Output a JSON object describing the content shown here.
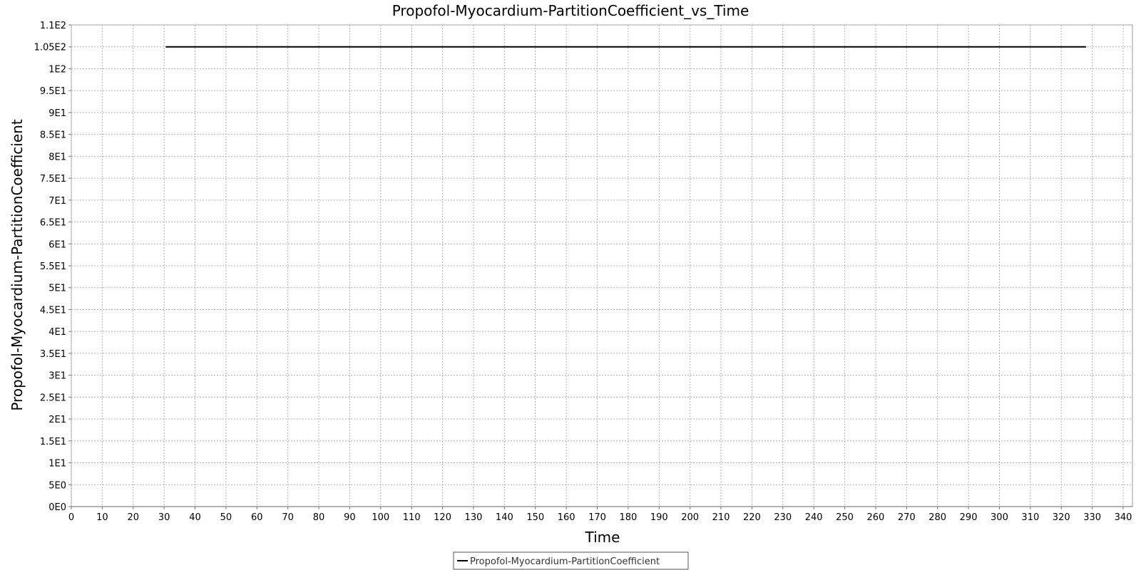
{
  "chart_data": {
    "type": "line",
    "title": "Propofol-Myocardium-PartitionCoefficient_vs_Time",
    "xlabel": "Time",
    "ylabel": "Propofol-Myocardium-PartitionCoefficient",
    "xlim": [
      0,
      343
    ],
    "ylim": [
      0,
      110
    ],
    "x_ticks": [
      0,
      10,
      20,
      30,
      40,
      50,
      60,
      70,
      80,
      90,
      100,
      110,
      120,
      130,
      140,
      150,
      160,
      170,
      180,
      190,
      200,
      210,
      220,
      230,
      240,
      250,
      260,
      270,
      280,
      290,
      300,
      310,
      320,
      330,
      340
    ],
    "y_ticks": [
      {
        "value": 0,
        "label": "0E0"
      },
      {
        "value": 5,
        "label": "5E0"
      },
      {
        "value": 10,
        "label": "1E1"
      },
      {
        "value": 15,
        "label": "1.5E1"
      },
      {
        "value": 20,
        "label": "2E1"
      },
      {
        "value": 25,
        "label": "2.5E1"
      },
      {
        "value": 30,
        "label": "3E1"
      },
      {
        "value": 35,
        "label": "3.5E1"
      },
      {
        "value": 40,
        "label": "4E1"
      },
      {
        "value": 45,
        "label": "4.5E1"
      },
      {
        "value": 50,
        "label": "5E1"
      },
      {
        "value": 55,
        "label": "5.5E1"
      },
      {
        "value": 60,
        "label": "6E1"
      },
      {
        "value": 65,
        "label": "6.5E1"
      },
      {
        "value": 70,
        "label": "7E1"
      },
      {
        "value": 75,
        "label": "7.5E1"
      },
      {
        "value": 80,
        "label": "8E1"
      },
      {
        "value": 85,
        "label": "8.5E1"
      },
      {
        "value": 90,
        "label": "9E1"
      },
      {
        "value": 95,
        "label": "9.5E1"
      },
      {
        "value": 100,
        "label": "1E2"
      },
      {
        "value": 105,
        "label": "1.05E2"
      },
      {
        "value": 110,
        "label": "1.1E2"
      }
    ],
    "grid": true,
    "legend_position": "bottom-center",
    "series": [
      {
        "name": "Propofol-Myocardium-PartitionCoefficient",
        "color": "#000000",
        "x": [
          30.5,
          328
        ],
        "y": [
          105,
          105
        ]
      }
    ]
  }
}
